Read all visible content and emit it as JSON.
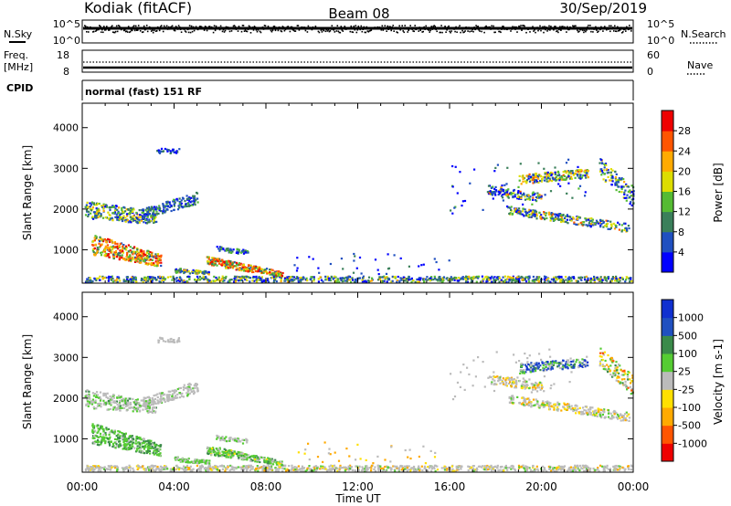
{
  "header": {
    "site": "Kodiak (fitACF)",
    "beam": "Beam 08",
    "date": "30/Sep/2019"
  },
  "top_labels": {
    "nsky": "N.Sky",
    "nsky_top": "10^5",
    "nsky_bottom": "10^0",
    "nsearch": "N.Search",
    "nsearch_top": "10^5",
    "nsearch_bottom": "10^0",
    "freq": "Freq.",
    "freq_unit": "[MHz]",
    "freq_top": "18",
    "freq_bottom": "8",
    "nave": "Nave",
    "nave_top": "60",
    "nave_bottom": "0",
    "cpid": "CPID",
    "mode": "normal (fast) 151 RF"
  },
  "colors": {
    "power": [
      "#0000ff",
      "#2050c0",
      "#3a7f5a",
      "#55bb33",
      "#dddd00",
      "#ffaa00",
      "#ff5500",
      "#ee0000"
    ],
    "velocity": [
      "#ee0000",
      "#ff5500",
      "#ffaa00",
      "#ffe000",
      "#bbbbbb",
      "#55cc33",
      "#3a8a4a",
      "#2050c0",
      "#1030d0"
    ]
  },
  "chart_data": [
    {
      "type": "heatmap",
      "title": "Power",
      "ylabel": "Slant Range [km]",
      "yticks": [
        "1000",
        "2000",
        "3000",
        "4000"
      ],
      "ylim": [
        180,
        4600
      ],
      "xlim": [
        0,
        24
      ],
      "colorbar": {
        "label": "Power [dB]",
        "ticks": [
          "4",
          "8",
          "12",
          "16",
          "20",
          "24",
          "28"
        ],
        "range": [
          0,
          32
        ]
      },
      "grid": false
    },
    {
      "type": "heatmap",
      "title": "Velocity",
      "ylabel": "Slant Range [km]",
      "xlabel": "Time UT",
      "xticks": [
        "00:00",
        "04:00",
        "08:00",
        "12:00",
        "16:00",
        "20:00",
        "00:00"
      ],
      "yticks": [
        "1000",
        "2000",
        "3000",
        "4000"
      ],
      "ylim": [
        180,
        4600
      ],
      "xlim": [
        0,
        24
      ],
      "colorbar": {
        "label": "Velocity [m s-1]",
        "ticks": [
          "1000",
          "500",
          "100",
          "25",
          "-25",
          "-100",
          "-500",
          "-1000"
        ]
      },
      "grid": false
    }
  ]
}
